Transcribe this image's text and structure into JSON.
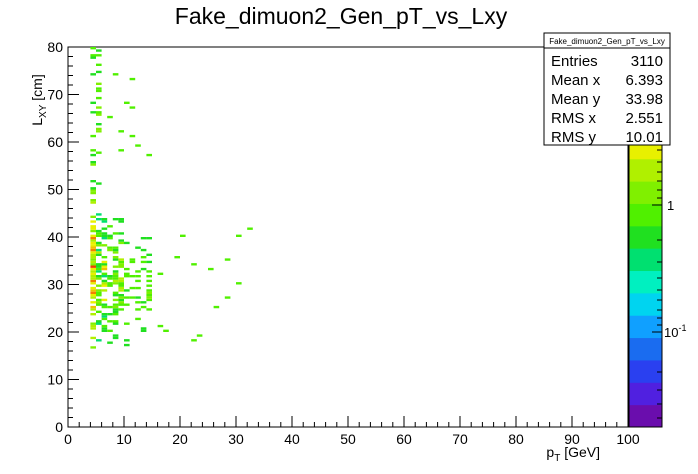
{
  "chart_data": {
    "type": "heatmap",
    "title": "Fake_dimuon2_Gen_pT_vs_Lxy",
    "xlabel": "p_T [GeV]",
    "ylabel": "L_XY [cm]",
    "xlim": [
      0,
      100
    ],
    "ylim": [
      0,
      80
    ],
    "x_ticks": [
      "0",
      "10",
      "20",
      "30",
      "40",
      "50",
      "60",
      "70",
      "80",
      "90",
      "100"
    ],
    "y_ticks": [
      "0",
      "10",
      "20",
      "30",
      "40",
      "50",
      "60",
      "70",
      "80"
    ],
    "z_scale": "log",
    "z_ticks": [
      "1",
      "10^-1"
    ],
    "bin_width_x": 1,
    "bin_width_y": 0.5,
    "density_by_x": [
      {
        "x_range": [
          4,
          5
        ],
        "y_range": [
          16,
          50
        ],
        "level": "high"
      },
      {
        "x_range": [
          5,
          7
        ],
        "y_range": [
          17,
          45
        ],
        "level": "medium"
      },
      {
        "x_range": [
          7,
          10
        ],
        "y_range": [
          17,
          44
        ],
        "level": "medium-low"
      },
      {
        "x_range": [
          10,
          15
        ],
        "y_range": [
          17,
          40
        ],
        "level": "low"
      }
    ],
    "sparse_bins": [
      {
        "x": 4.5,
        "y": 79.5
      },
      {
        "x": 5.5,
        "y": 78
      },
      {
        "x": 5.5,
        "y": 76
      },
      {
        "x": 8.5,
        "y": 74
      },
      {
        "x": 11.5,
        "y": 73
      },
      {
        "x": 5.5,
        "y": 71
      },
      {
        "x": 5.5,
        "y": 69
      },
      {
        "x": 10.5,
        "y": 68
      },
      {
        "x": 11.5,
        "y": 67
      },
      {
        "x": 5.5,
        "y": 66
      },
      {
        "x": 7.5,
        "y": 65
      },
      {
        "x": 9.5,
        "y": 62
      },
      {
        "x": 11.5,
        "y": 61
      },
      {
        "x": 12.5,
        "y": 59
      },
      {
        "x": 14.5,
        "y": 57
      },
      {
        "x": 9.5,
        "y": 58
      },
      {
        "x": 20.5,
        "y": 40
      },
      {
        "x": 30.5,
        "y": 40
      },
      {
        "x": 32.5,
        "y": 41.5
      },
      {
        "x": 19.5,
        "y": 35.5
      },
      {
        "x": 22.5,
        "y": 34
      },
      {
        "x": 25.5,
        "y": 33
      },
      {
        "x": 28.5,
        "y": 35
      },
      {
        "x": 16.5,
        "y": 32
      },
      {
        "x": 30.5,
        "y": 30
      },
      {
        "x": 28.5,
        "y": 27
      },
      {
        "x": 26.5,
        "y": 25
      },
      {
        "x": 22.5,
        "y": 18
      },
      {
        "x": 23.5,
        "y": 19
      },
      {
        "x": 16.5,
        "y": 21
      },
      {
        "x": 17.5,
        "y": 20
      }
    ]
  },
  "stats": {
    "name": "Fake_dimuon2_Gen_pT_vs_Lxy",
    "rows": [
      {
        "label": "Entries",
        "value": "3110"
      },
      {
        "label": "Mean x",
        "value": "6.393"
      },
      {
        "label": "Mean y",
        "value": "33.98"
      },
      {
        "label": "RMS x",
        "value": "2.551"
      },
      {
        "label": "RMS y",
        "value": "10.01"
      }
    ]
  },
  "colors": {
    "frame": "#000000",
    "palette": [
      "#6a0dad",
      "#5020e0",
      "#2a40f0",
      "#1a6cf0",
      "#10a0ff",
      "#00d4f0",
      "#00f0c0",
      "#00e070",
      "#20e020",
      "#50f000",
      "#80f000",
      "#b0f000",
      "#e8f000",
      "#f0c000",
      "#f08000",
      "#f04000",
      "#e00000"
    ]
  }
}
